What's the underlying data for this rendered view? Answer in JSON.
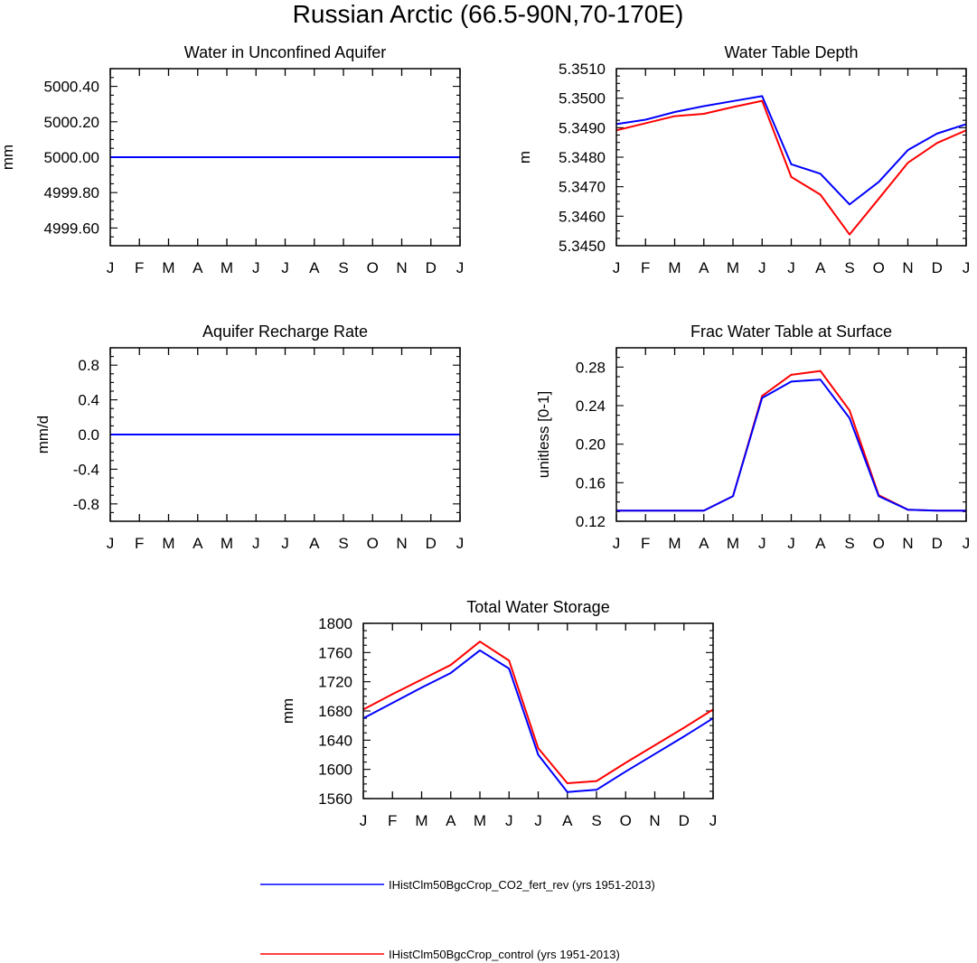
{
  "title": "Russian Arctic (66.5-90N,70-170E)",
  "colors": {
    "blue": "#0000ff",
    "red": "#ff0000",
    "axis": "#000000"
  },
  "legend": [
    {
      "label": "IHistClm50BgcCrop_CO2_fert_rev (yrs 1951-2013)",
      "color": "#0000ff"
    },
    {
      "label": "IHistClm50BgcCrop_control (yrs 1951-2013)",
      "color": "#ff0000"
    }
  ],
  "chart_data": [
    {
      "type": "line",
      "title": "Water in Unconfined Aquifer",
      "ylabel": "mm",
      "x": [
        "J",
        "F",
        "M",
        "A",
        "M",
        "J",
        "J",
        "A",
        "S",
        "O",
        "N",
        "D",
        "J"
      ],
      "ylim": [
        4999.5,
        5000.5
      ],
      "yticks": [
        4999.6,
        4999.8,
        5000.0,
        5000.2,
        5000.4
      ],
      "ytick_labels": [
        "4999.60",
        "4999.80",
        "5000.00",
        "5000.20",
        "5000.40"
      ],
      "series": [
        {
          "name": "IHistClm50BgcCrop_control (yrs 1951-2013)",
          "color": "#ff0000",
          "values": [
            5000,
            5000,
            5000,
            5000,
            5000,
            5000,
            5000,
            5000,
            5000,
            5000,
            5000,
            5000,
            5000
          ]
        },
        {
          "name": "IHistClm50BgcCrop_CO2_fert_rev (yrs 1951-2013)",
          "color": "#0000ff",
          "values": [
            5000,
            5000,
            5000,
            5000,
            5000,
            5000,
            5000,
            5000,
            5000,
            5000,
            5000,
            5000,
            5000
          ]
        }
      ]
    },
    {
      "type": "line",
      "title": "Water Table Depth",
      "ylabel": "m",
      "x": [
        "J",
        "F",
        "M",
        "A",
        "M",
        "J",
        "J",
        "A",
        "S",
        "O",
        "N",
        "D",
        "J"
      ],
      "ylim": [
        5.345,
        5.351
      ],
      "yticks": [
        5.345,
        5.346,
        5.347,
        5.348,
        5.349,
        5.35,
        5.351
      ],
      "ytick_labels": [
        "5.3450",
        "5.3460",
        "5.3470",
        "5.3480",
        "5.3490",
        "5.3500",
        "5.3510"
      ],
      "series": [
        {
          "name": "IHistClm50BgcCrop_control (yrs 1951-2013)",
          "color": "#ff0000",
          "values": [
            5.34891,
            5.34915,
            5.34939,
            5.34947,
            5.3497,
            5.34991,
            5.34733,
            5.34673,
            5.34538,
            5.34659,
            5.34781,
            5.34848,
            5.34891
          ]
        },
        {
          "name": "IHistClm50BgcCrop_CO2_fert_rev (yrs 1951-2013)",
          "color": "#0000ff",
          "values": [
            5.34912,
            5.34927,
            5.34953,
            5.34973,
            5.3499,
            5.35007,
            5.34776,
            5.34744,
            5.3464,
            5.34716,
            5.34824,
            5.3488,
            5.34912
          ]
        }
      ]
    },
    {
      "type": "line",
      "title": "Aquifer Recharge Rate",
      "ylabel": "mm/d",
      "x": [
        "J",
        "F",
        "M",
        "A",
        "M",
        "J",
        "J",
        "A",
        "S",
        "O",
        "N",
        "D",
        "J"
      ],
      "ylim": [
        -1.0,
        1.0
      ],
      "yticks": [
        -0.8,
        -0.4,
        0.0,
        0.4,
        0.8
      ],
      "ytick_labels": [
        "-0.8",
        "-0.4",
        "0.0",
        "0.4",
        "0.8"
      ],
      "series": [
        {
          "name": "IHistClm50BgcCrop_control (yrs 1951-2013)",
          "color": "#ff0000",
          "values": [
            0,
            0,
            0,
            0,
            0,
            0,
            0,
            0,
            0,
            0,
            0,
            0,
            0
          ]
        },
        {
          "name": "IHistClm50BgcCrop_CO2_fert_rev (yrs 1951-2013)",
          "color": "#0000ff",
          "values": [
            0,
            0,
            0,
            0,
            0,
            0,
            0,
            0,
            0,
            0,
            0,
            0,
            0
          ]
        }
      ]
    },
    {
      "type": "line",
      "title": "Frac Water Table at Surface",
      "ylabel": "unitless [0-1]",
      "x": [
        "J",
        "F",
        "M",
        "A",
        "M",
        "J",
        "J",
        "A",
        "S",
        "O",
        "N",
        "D",
        "J"
      ],
      "ylim": [
        0.12,
        0.3
      ],
      "yticks": [
        0.12,
        0.16,
        0.2,
        0.24,
        0.28
      ],
      "ytick_labels": [
        "0.12",
        "0.16",
        "0.20",
        "0.24",
        "0.28"
      ],
      "series": [
        {
          "name": "IHistClm50BgcCrop_control (yrs 1951-2013)",
          "color": "#ff0000",
          "values": [
            0.131,
            0.131,
            0.131,
            0.131,
            0.146,
            0.25,
            0.272,
            0.276,
            0.235,
            0.147,
            0.132,
            0.131,
            0.131
          ]
        },
        {
          "name": "IHistClm50BgcCrop_CO2_fert_rev (yrs 1951-2013)",
          "color": "#0000ff",
          "values": [
            0.131,
            0.131,
            0.131,
            0.131,
            0.146,
            0.248,
            0.265,
            0.267,
            0.227,
            0.146,
            0.132,
            0.131,
            0.131
          ]
        }
      ]
    },
    {
      "type": "line",
      "title": "Total Water Storage",
      "ylabel": "mm",
      "x": [
        "J",
        "F",
        "M",
        "A",
        "M",
        "J",
        "J",
        "A",
        "S",
        "O",
        "N",
        "D",
        "J"
      ],
      "ylim": [
        1560,
        1800
      ],
      "yticks": [
        1560,
        1600,
        1640,
        1680,
        1720,
        1760,
        1800
      ],
      "ytick_labels": [
        "1560",
        "1600",
        "1640",
        "1680",
        "1720",
        "1760",
        "1800"
      ],
      "series": [
        {
          "name": "IHistClm50BgcCrop_control (yrs 1951-2013)",
          "color": "#ff0000",
          "values": [
            1682,
            1703,
            1723,
            1743,
            1775,
            1749,
            1629,
            1581,
            1584,
            1609,
            1633,
            1657,
            1682
          ]
        },
        {
          "name": "IHistClm50BgcCrop_CO2_fert_rev (yrs 1951-2013)",
          "color": "#0000ff",
          "values": [
            1670,
            1691,
            1712,
            1732,
            1763,
            1738,
            1620,
            1569,
            1572,
            1597,
            1621,
            1645,
            1670
          ]
        }
      ]
    }
  ]
}
